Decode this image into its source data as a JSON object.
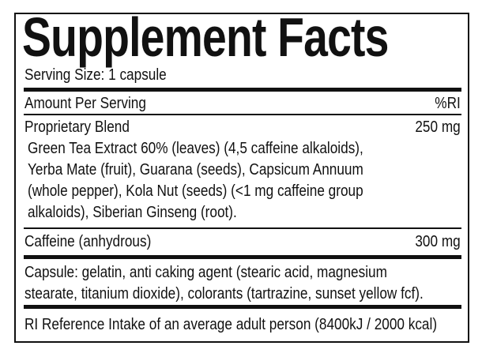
{
  "title": "Supplement Facts",
  "serving_size": "Serving Size: 1 capsule",
  "header": {
    "left": "Amount Per Serving",
    "right": "%RI"
  },
  "blend": {
    "name": "Proprietary Blend",
    "amount": "250 mg",
    "ingredients_lines": [
      "Green Tea Extract 60% (leaves) (4,5 caffeine alkaloids),",
      "Yerba Mate (fruit), Guarana (seeds), Capsicum Annuum",
      "(whole pepper), Kola Nut (seeds) (<1 mg caffeine group",
      "alkaloids), Siberian Ginseng (root)."
    ]
  },
  "caffeine": {
    "name": "Caffeine (anhydrous)",
    "amount": "300 mg"
  },
  "capsule_lines": [
    "Capsule: gelatin, anti caking agent (stearic acid, magnesium",
    "stearate, titanium dioxide), colorants (tartrazine, sunset yellow fcf)."
  ],
  "footnote": "RI Reference Intake of an average adult person (8400kJ / 2000 kcal)"
}
